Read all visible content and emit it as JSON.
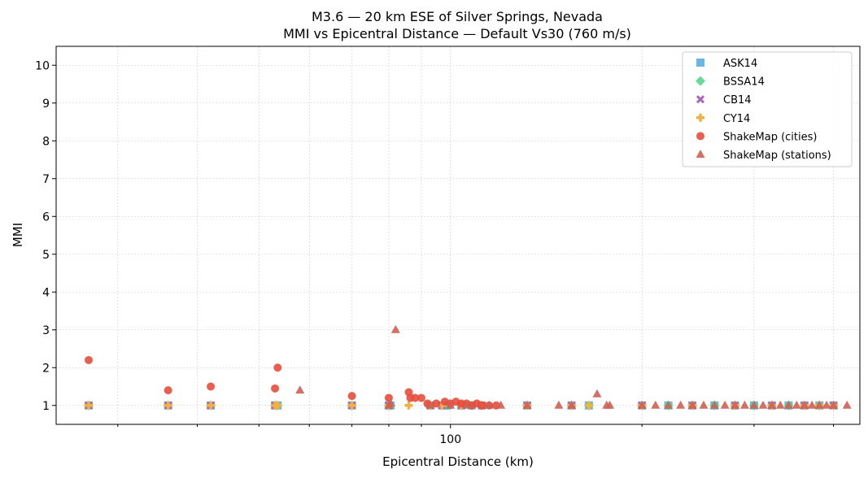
{
  "chart_data": {
    "type": "scatter",
    "title": "M3.6 — 20 km ESE of Silver Springs, Nevada",
    "subtitle": "MMI vs Epicentral Distance — Default Vs30 (760 m/s)",
    "xlabel": "Epicentral Distance (km)",
    "ylabel": "MMI",
    "xscale": "log",
    "xlim": [
      24,
      440
    ],
    "ylim": [
      0.5,
      10.5
    ],
    "xticks": [
      100
    ],
    "xtick_labels": [
      "100"
    ],
    "x_minor_ticks": [
      30,
      40,
      50,
      60,
      70,
      80,
      90,
      200,
      300,
      400
    ],
    "yticks": [
      1,
      2,
      3,
      4,
      5,
      6,
      7,
      8,
      9,
      10
    ],
    "ytick_labels": [
      "1",
      "2",
      "3",
      "4",
      "5",
      "6",
      "7",
      "8",
      "9",
      "10"
    ],
    "grid": true,
    "legend_position": "top-right",
    "series": [
      {
        "name": "ASK14",
        "marker": "square",
        "color": "#5dade2",
        "points": [
          [
            27,
            1
          ],
          [
            36,
            1
          ],
          [
            42,
            1
          ],
          [
            53,
            1
          ],
          [
            53.5,
            1
          ],
          [
            70,
            1
          ],
          [
            80,
            1
          ],
          [
            80.5,
            1
          ],
          [
            93,
            1
          ],
          [
            97,
            1
          ],
          [
            99,
            1
          ],
          [
            104,
            1
          ],
          [
            108,
            1
          ],
          [
            112,
            1
          ],
          [
            132,
            1
          ],
          [
            155,
            1
          ],
          [
            165,
            1
          ],
          [
            200,
            1
          ],
          [
            220,
            1
          ],
          [
            240,
            1
          ],
          [
            260,
            1
          ],
          [
            280,
            1
          ],
          [
            300,
            1
          ],
          [
            320,
            1
          ],
          [
            340,
            1
          ],
          [
            360,
            1
          ],
          [
            380,
            1
          ],
          [
            400,
            1
          ]
        ]
      },
      {
        "name": "BSSA14",
        "marker": "diamond",
        "color": "#58d68d",
        "points": [
          [
            27,
            1
          ],
          [
            36,
            1
          ],
          [
            42,
            1
          ],
          [
            53,
            1
          ],
          [
            53.5,
            1
          ],
          [
            70,
            1
          ],
          [
            80,
            1
          ],
          [
            80.5,
            1
          ],
          [
            93,
            1
          ],
          [
            97,
            1
          ],
          [
            99,
            1
          ],
          [
            104,
            1
          ],
          [
            108,
            1
          ],
          [
            112,
            1
          ],
          [
            132,
            1
          ],
          [
            155,
            1
          ],
          [
            165,
            1
          ],
          [
            200,
            1
          ],
          [
            220,
            1
          ],
          [
            240,
            1
          ],
          [
            260,
            1
          ],
          [
            280,
            1
          ],
          [
            300,
            1
          ],
          [
            320,
            1
          ],
          [
            340,
            1
          ],
          [
            360,
            1
          ],
          [
            380,
            1
          ],
          [
            400,
            1
          ]
        ]
      },
      {
        "name": "CB14",
        "marker": "x",
        "color": "#a569bd",
        "points": [
          [
            27,
            1
          ],
          [
            36,
            1
          ],
          [
            42,
            1
          ],
          [
            53,
            1
          ],
          [
            70,
            1
          ],
          [
            80,
            1
          ],
          [
            93,
            1
          ],
          [
            97,
            1
          ],
          [
            104,
            1
          ],
          [
            112,
            1
          ],
          [
            132,
            1
          ],
          [
            155,
            1
          ],
          [
            200,
            1
          ],
          [
            240,
            1
          ],
          [
            280,
            1
          ],
          [
            320,
            1
          ],
          [
            360,
            1
          ],
          [
            400,
            1
          ]
        ]
      },
      {
        "name": "CY14",
        "marker": "plus",
        "color": "#f5b041",
        "points": [
          [
            27,
            1
          ],
          [
            36,
            1
          ],
          [
            42,
            1
          ],
          [
            53,
            1
          ],
          [
            53.5,
            1
          ],
          [
            70,
            1
          ],
          [
            80,
            1
          ],
          [
            86,
            1
          ],
          [
            93,
            1
          ],
          [
            97,
            1
          ],
          [
            104,
            1
          ],
          [
            112,
            1
          ],
          [
            132,
            1
          ],
          [
            155,
            1
          ],
          [
            165,
            1
          ],
          [
            200,
            1
          ],
          [
            240,
            1
          ],
          [
            280,
            1
          ],
          [
            320,
            1
          ],
          [
            360,
            1
          ],
          [
            380,
            1
          ],
          [
            400,
            1
          ]
        ]
      },
      {
        "name": "ShakeMap (cities)",
        "marker": "circle",
        "color": "#e74c3c",
        "points": [
          [
            27,
            2.2
          ],
          [
            36,
            1.4
          ],
          [
            42,
            1.5
          ],
          [
            53,
            1.45
          ],
          [
            53.5,
            2.0
          ],
          [
            70,
            1.25
          ],
          [
            80,
            1.2
          ],
          [
            86,
            1.35
          ],
          [
            86.5,
            1.2
          ],
          [
            88,
            1.2
          ],
          [
            90,
            1.2
          ],
          [
            92,
            1.05
          ],
          [
            95,
            1.05
          ],
          [
            98,
            1.1
          ],
          [
            100,
            1.05
          ],
          [
            102,
            1.1
          ],
          [
            104,
            1.05
          ],
          [
            106,
            1.05
          ],
          [
            108,
            1.0
          ],
          [
            110,
            1.05
          ],
          [
            112,
            1.0
          ],
          [
            115,
            1.0
          ],
          [
            118,
            1.0
          ]
        ]
      },
      {
        "name": "ShakeMap (stations)",
        "marker": "triangle",
        "color": "#cd6155",
        "points": [
          [
            58,
            1.4
          ],
          [
            80,
            1.0
          ],
          [
            80.5,
            1.05
          ],
          [
            82,
            3.0
          ],
          [
            93,
            1.0
          ],
          [
            100,
            1.0
          ],
          [
            106,
            1.0
          ],
          [
            115,
            1.0
          ],
          [
            120,
            1.0
          ],
          [
            132,
            1.0
          ],
          [
            148,
            1.0
          ],
          [
            155,
            1.0
          ],
          [
            170,
            1.3
          ],
          [
            176,
            1.0
          ],
          [
            178,
            1.0
          ],
          [
            200,
            1.0
          ],
          [
            210,
            1.0
          ],
          [
            220,
            1.0
          ],
          [
            230,
            1.0
          ],
          [
            240,
            1.0
          ],
          [
            250,
            1.0
          ],
          [
            260,
            1.0
          ],
          [
            270,
            1.0
          ],
          [
            280,
            1.0
          ],
          [
            290,
            1.0
          ],
          [
            300,
            1.0
          ],
          [
            310,
            1.0
          ],
          [
            320,
            1.0
          ],
          [
            330,
            1.0
          ],
          [
            340,
            1.0
          ],
          [
            350,
            1.0
          ],
          [
            360,
            1.0
          ],
          [
            370,
            1.0
          ],
          [
            380,
            1.0
          ],
          [
            390,
            1.0
          ],
          [
            400,
            1.0
          ],
          [
            420,
            1.0
          ]
        ]
      }
    ]
  }
}
